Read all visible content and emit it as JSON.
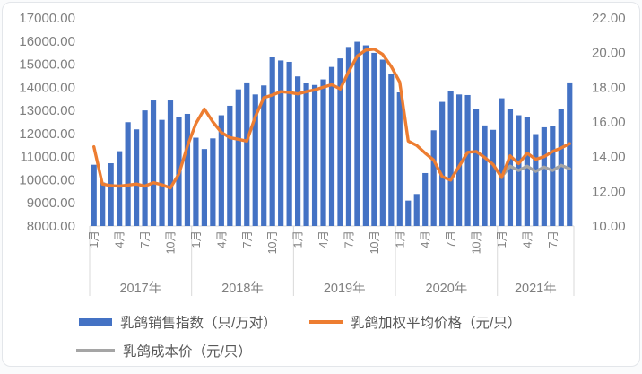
{
  "chart_data": {
    "type": "combo-bar-line",
    "title": "",
    "left_axis": {
      "min": 8000,
      "max": 17000,
      "step": 1000,
      "tick_labels": [
        "17000.00",
        "16000.00",
        "15000.00",
        "14000.00",
        "13000.00",
        "12000.00",
        "11000.00",
        "10000.00",
        "9000.00",
        "8000.00"
      ]
    },
    "right_axis": {
      "min": 10,
      "max": 22,
      "step": 2,
      "tick_labels": [
        "22.00",
        "20.00",
        "18.00",
        "16.00",
        "14.00",
        "12.00",
        "10.00"
      ]
    },
    "year_groups": [
      {
        "label": "2017年",
        "months": 12,
        "ticks": [
          {
            "m": 1,
            "t": "1月"
          },
          {
            "m": 4,
            "t": "4月"
          },
          {
            "m": 7,
            "t": "7月"
          },
          {
            "m": 10,
            "t": "10月"
          }
        ]
      },
      {
        "label": "2018年",
        "months": 12,
        "ticks": [
          {
            "m": 1,
            "t": "1月"
          },
          {
            "m": 4,
            "t": "4月"
          },
          {
            "m": 7,
            "t": "7月"
          },
          {
            "m": 10,
            "t": "10月"
          }
        ]
      },
      {
        "label": "2019年",
        "months": 12,
        "ticks": [
          {
            "m": 1,
            "t": "1月"
          },
          {
            "m": 4,
            "t": "4月"
          },
          {
            "m": 7,
            "t": "7月"
          },
          {
            "m": 10,
            "t": "10月"
          }
        ]
      },
      {
        "label": "2020年",
        "months": 12,
        "ticks": [
          {
            "m": 1,
            "t": "1月"
          },
          {
            "m": 4,
            "t": "4月"
          },
          {
            "m": 7,
            "t": "7月"
          },
          {
            "m": 10,
            "t": "10月"
          }
        ]
      },
      {
        "label": "2021年",
        "months": 9,
        "ticks": [
          {
            "m": 1,
            "t": "1月"
          },
          {
            "m": 4,
            "t": "4月"
          },
          {
            "m": 7,
            "t": "7月"
          }
        ]
      }
    ],
    "series": [
      {
        "name": "乳鸽销售指数（只/万对）",
        "type": "bar",
        "axis": "left",
        "color": "#4472C4",
        "start_index": 0,
        "values": [
          10650,
          9880,
          10715,
          11235,
          12490,
          12180,
          13000,
          13430,
          12590,
          13430,
          12720,
          12850,
          11820,
          11330,
          11790,
          12790,
          13200,
          13910,
          14210,
          13690,
          14080,
          15330,
          15160,
          15100,
          14470,
          14180,
          14100,
          14340,
          14880,
          15250,
          15745,
          15970,
          15815,
          15490,
          15195,
          14585,
          13780,
          9100,
          9385,
          10290,
          12140,
          13370,
          13845,
          13690,
          13665,
          13045,
          12350,
          12160,
          13525,
          13070,
          12790,
          12720,
          11975,
          12270,
          12335,
          13045,
          14210
        ]
      },
      {
        "name": "乳鸽加权平均价格（元/只）",
        "type": "line",
        "axis": "right",
        "color": "#ED7D31",
        "start_index": 0,
        "values": [
          14.57,
          12.42,
          12.33,
          12.3,
          12.36,
          12.42,
          12.3,
          12.5,
          12.38,
          12.2,
          13.0,
          14.6,
          15.9,
          16.75,
          16.0,
          15.4,
          15.1,
          15.0,
          14.9,
          16.3,
          17.4,
          17.55,
          17.75,
          17.7,
          17.62,
          17.75,
          17.85,
          18.0,
          18.15,
          17.9,
          18.9,
          19.8,
          20.15,
          20.2,
          19.9,
          19.2,
          18.3,
          14.9,
          14.65,
          14.2,
          13.8,
          12.85,
          12.65,
          13.45,
          14.25,
          14.3,
          13.95,
          13.55,
          12.8,
          14.05,
          13.6,
          14.2,
          13.85,
          14.0,
          14.3,
          14.5,
          14.75
        ]
      },
      {
        "name": "乳鸽成本价（元/只）",
        "type": "line",
        "axis": "right",
        "color": "#A5A5A5",
        "start_index": 48,
        "values": [
          12.85,
          13.45,
          13.2,
          13.45,
          13.15,
          13.4,
          13.2,
          13.5,
          13.3
        ]
      }
    ],
    "legend_position": "bottom-left",
    "grid": false
  },
  "colors": {
    "axis_text": "#7f7f7f",
    "legend_text": "#595959",
    "axis_line": "#d9d9d9"
  }
}
